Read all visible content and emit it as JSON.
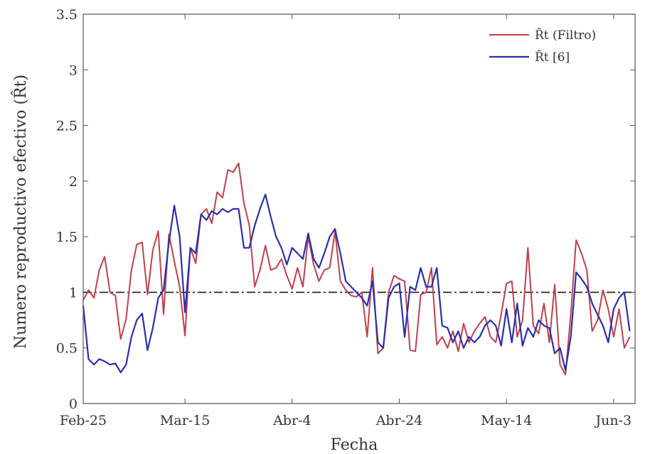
{
  "chart_data": {
    "type": "line",
    "xlabel": "Fecha",
    "ylabel": "Numero reproductivo efectivo (R̂t)",
    "xlim": [
      0,
      103
    ],
    "ylim": [
      0,
      3.5
    ],
    "x_ticks": [
      {
        "x": 0,
        "label": "Feb-25"
      },
      {
        "x": 19,
        "label": "Mar-15"
      },
      {
        "x": 39,
        "label": "Abr-4"
      },
      {
        "x": 59,
        "label": "Abr-24"
      },
      {
        "x": 79,
        "label": "May-14"
      },
      {
        "x": 99,
        "label": "Jun-3"
      }
    ],
    "y_ticks": [
      {
        "y": 0,
        "label": "0"
      },
      {
        "y": 0.5,
        "label": "0.5"
      },
      {
        "y": 1,
        "label": "1"
      },
      {
        "y": 1.5,
        "label": "1.5"
      },
      {
        "y": 2,
        "label": "2"
      },
      {
        "y": 2.5,
        "label": "2.5"
      },
      {
        "y": 3,
        "label": "3"
      },
      {
        "y": 3.5,
        "label": "3.5"
      }
    ],
    "reference_line": {
      "y": 1,
      "style": "dash-dot",
      "color": "#1a1a1a"
    },
    "legend_position": "top-right",
    "grid": false,
    "series": [
      {
        "name": "R̂t (Filtro)",
        "color": "#c0404a",
        "values": [
          0.93,
          1.02,
          0.95,
          1.2,
          1.32,
          1.0,
          0.97,
          0.58,
          0.76,
          1.2,
          1.43,
          1.45,
          0.98,
          1.38,
          1.55,
          0.8,
          1.52,
          1.28,
          1.05,
          0.61,
          1.4,
          1.26,
          1.7,
          1.75,
          1.62,
          1.9,
          1.85,
          2.1,
          2.08,
          2.16,
          1.8,
          1.6,
          1.05,
          1.2,
          1.42,
          1.2,
          1.22,
          1.3,
          1.15,
          1.03,
          1.22,
          1.05,
          1.5,
          1.25,
          1.1,
          1.2,
          1.22,
          1.55,
          1.1,
          1.02,
          0.97,
          0.96,
          1.0,
          0.6,
          1.22,
          0.45,
          0.5,
          1.0,
          1.15,
          1.12,
          1.1,
          0.48,
          0.47,
          0.98,
          1.0,
          1.22,
          0.53,
          0.6,
          0.5,
          0.65,
          0.47,
          0.72,
          0.55,
          0.65,
          0.72,
          0.78,
          0.6,
          0.55,
          0.8,
          1.08,
          1.1,
          0.6,
          0.75,
          1.4,
          0.7,
          0.63,
          0.9,
          0.55,
          1.07,
          0.35,
          0.26,
          0.8,
          1.47,
          1.35,
          1.2,
          0.65,
          0.75,
          1.02,
          0.85,
          0.6,
          0.85,
          0.5,
          0.6
        ]
      },
      {
        "name": "R̂t [6]",
        "color": "#2a2fae",
        "values": [
          0.88,
          0.4,
          0.35,
          0.4,
          0.38,
          0.35,
          0.36,
          0.28,
          0.35,
          0.6,
          0.75,
          0.81,
          0.48,
          0.68,
          0.95,
          1.02,
          1.45,
          1.78,
          1.5,
          0.82,
          1.4,
          1.35,
          1.7,
          1.65,
          1.73,
          1.7,
          1.75,
          1.72,
          1.75,
          1.75,
          1.4,
          1.4,
          1.6,
          1.75,
          1.88,
          1.68,
          1.5,
          1.4,
          1.25,
          1.4,
          1.35,
          1.3,
          1.53,
          1.3,
          1.22,
          1.35,
          1.5,
          1.57,
          1.35,
          1.1,
          1.05,
          1.0,
          0.95,
          0.88,
          1.1,
          0.55,
          0.5,
          0.95,
          1.05,
          1.08,
          0.6,
          1.05,
          1.02,
          1.22,
          1.05,
          1.05,
          1.22,
          0.7,
          0.68,
          0.55,
          0.65,
          0.5,
          0.6,
          0.55,
          0.6,
          0.7,
          0.75,
          0.7,
          0.52,
          0.85,
          0.55,
          0.9,
          0.52,
          0.68,
          0.6,
          0.75,
          0.7,
          0.68,
          0.45,
          0.5,
          0.3,
          0.6,
          1.18,
          1.12,
          1.05,
          0.9,
          0.8,
          0.7,
          0.55,
          0.85,
          0.95,
          1.0,
          0.65
        ]
      }
    ]
  }
}
